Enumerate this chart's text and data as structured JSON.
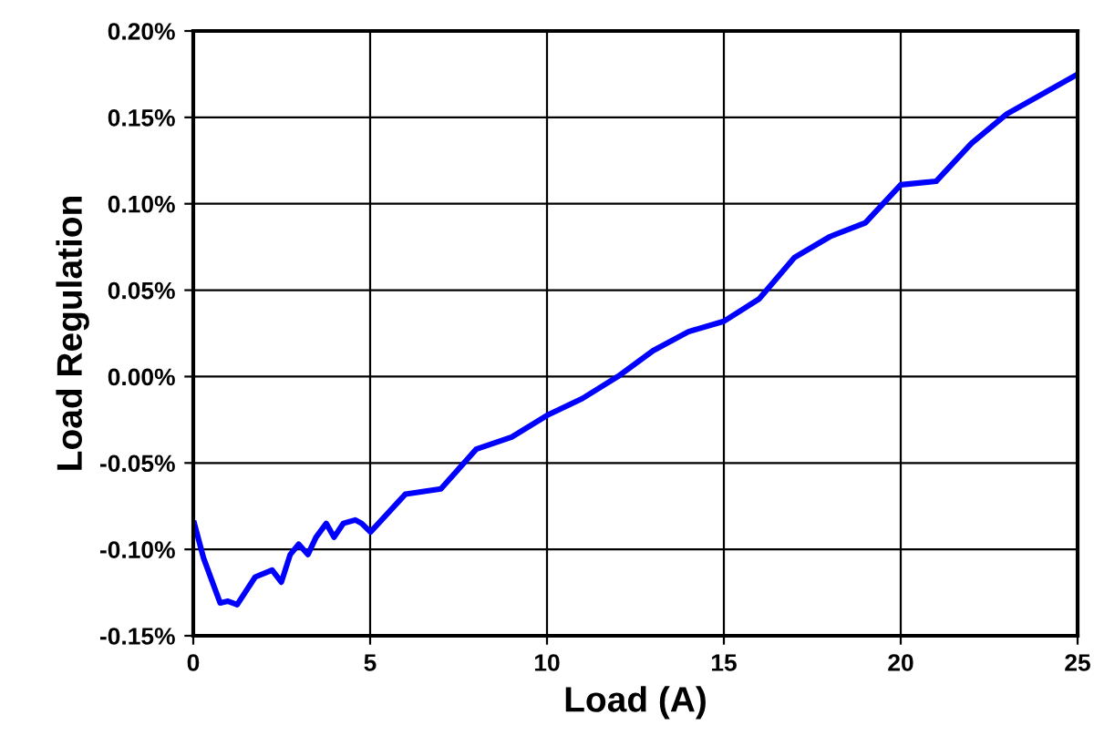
{
  "chart_data": {
    "type": "line",
    "xlabel": "Load (A)",
    "ylabel": "Load Regulation",
    "x": [
      0.03,
      0.29,
      0.76,
      0.98,
      1.24,
      1.75,
      2.23,
      2.49,
      2.74,
      2.98,
      3.24,
      3.47,
      3.76,
      3.98,
      4.24,
      4.58,
      4.76,
      5.01,
      6,
      7,
      8,
      9,
      10,
      11,
      12,
      13,
      14,
      15,
      16,
      17,
      18,
      19,
      20,
      21,
      22,
      23,
      25
    ],
    "series": [
      {
        "color": "#0000ff",
        "values": [
          -0.085,
          -0.105,
          -0.131,
          -0.13,
          -0.132,
          -0.116,
          -0.112,
          -0.119,
          -0.103,
          -0.097,
          -0.103,
          -0.093,
          -0.085,
          -0.093,
          -0.085,
          -0.083,
          -0.085,
          -0.09,
          -0.068,
          -0.065,
          -0.042,
          -0.035,
          -0.0225,
          -0.0127,
          0.0,
          0.015,
          0.026,
          0.032,
          0.045,
          0.069,
          0.081,
          0.089,
          0.111,
          0.113,
          0.135,
          0.152,
          0.175
        ]
      }
    ],
    "xlim": [
      0,
      25
    ],
    "xticks": [
      0,
      5,
      10,
      15,
      20,
      25
    ],
    "ylim": [
      -0.15,
      0.2
    ],
    "yticks": [
      {
        "value": -0.15,
        "label": "-0.15%"
      },
      {
        "value": -0.1,
        "label": "-0.10%"
      },
      {
        "value": -0.05,
        "label": "-0.05%"
      },
      {
        "value": 0,
        "label": "0.00%"
      },
      {
        "value": 0.05,
        "label": "0.05%"
      },
      {
        "value": 0.1,
        "label": "0.10%"
      },
      {
        "value": 0.15,
        "label": "0.15%"
      },
      {
        "value": 0.2,
        "label": "0.20%"
      }
    ],
    "grid": true,
    "legend": false,
    "marker": "none",
    "line_style": "solid"
  }
}
